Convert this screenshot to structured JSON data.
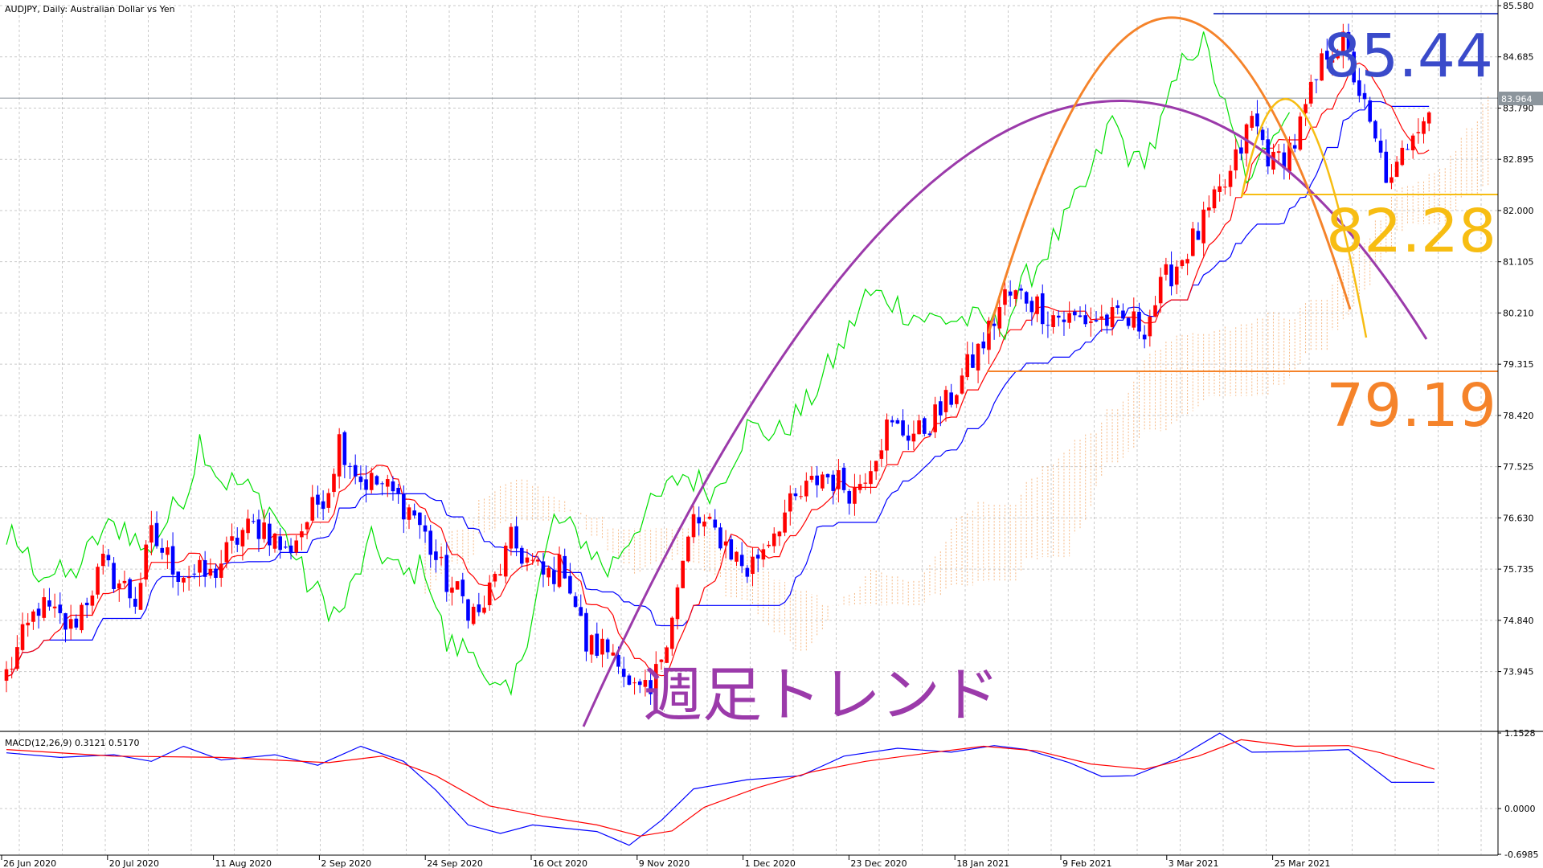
{
  "header": {
    "symbol_label": "AUDJPY, Daily:  Australian Dollar vs Yen"
  },
  "macd_header": {
    "label": "MACD(12,26,9) 0.3121 0.5170"
  },
  "current_price": "83.964",
  "annotation_text": "週足トレンド",
  "colors": {
    "bull_candle": "#ff0000",
    "bear_candle": "#0000ff",
    "tenkan": "#ff0000",
    "kijun": "#0000ff",
    "chikou": "#00e000",
    "cloud": "#f4a460",
    "purple": "#9b3aaa",
    "orange": "#f5832a",
    "gold": "#f7bd12",
    "level_blue": "#3a4aca",
    "macd_main": "#0000ff",
    "macd_signal": "#ff0000"
  },
  "chart_data": [
    {
      "type": "candlestick",
      "title": "AUDJPY, Daily:  Australian Dollar vs Yen",
      "ylim": [
        72.9,
        85.58
      ],
      "y_ticks": [
        "85.580",
        "84.685",
        "83.790",
        "82.895",
        "82.000",
        "81.105",
        "80.210",
        "79.315",
        "78.420",
        "77.525",
        "76.630",
        "75.735",
        "74.840",
        "73.945"
      ],
      "x_ticks": [
        "26 Jun 2020",
        "20 Jul 2020",
        "11 Aug 2020",
        "2 Sep 2020",
        "24 Sep 2020",
        "16 Oct 2020",
        "9 Nov 2020",
        "1 Dec 2020",
        "23 Dec 2020",
        "18 Jan 2021",
        "9 Feb 2021",
        "3 Mar 2021",
        "25 Mar 2021"
      ],
      "close_path": [
        [
          0,
          73.9
        ],
        [
          6,
          75.1
        ],
        [
          12,
          74.7
        ],
        [
          18,
          75.8
        ],
        [
          24,
          75.2
        ],
        [
          27,
          76.3
        ],
        [
          32,
          75.7
        ],
        [
          38,
          75.6
        ],
        [
          44,
          76.4
        ],
        [
          48,
          76.5
        ],
        [
          52,
          76.0
        ],
        [
          60,
          77.2
        ],
        [
          62,
          78.0
        ],
        [
          66,
          77.3
        ],
        [
          70,
          77.2
        ],
        [
          76,
          76.7
        ],
        [
          82,
          75.5
        ],
        [
          88,
          74.9
        ],
        [
          94,
          76.2
        ],
        [
          100,
          75.6
        ],
        [
          104,
          75.8
        ],
        [
          108,
          74.4
        ],
        [
          114,
          74.3
        ],
        [
          116,
          73.6
        ],
        [
          120,
          73.5
        ],
        [
          125,
          75.4
        ],
        [
          128,
          76.6
        ],
        [
          133,
          76.3
        ],
        [
          138,
          75.7
        ],
        [
          144,
          76.6
        ],
        [
          152,
          77.4
        ],
        [
          158,
          77.1
        ],
        [
          164,
          78.2
        ],
        [
          170,
          78.1
        ],
        [
          175,
          78.6
        ],
        [
          182,
          79.7
        ],
        [
          186,
          80.5
        ],
        [
          190,
          80.5
        ],
        [
          194,
          80.2
        ],
        [
          198,
          80.1
        ],
        [
          204,
          80.1
        ],
        [
          212,
          80.0
        ],
        [
          216,
          80.8
        ],
        [
          222,
          81.6
        ],
        [
          228,
          82.6
        ],
        [
          232,
          83.6
        ],
        [
          236,
          82.8
        ],
        [
          240,
          83.2
        ],
        [
          246,
          84.8
        ],
        [
          249,
          84.9
        ],
        [
          252,
          84.1
        ],
        [
          254,
          83.4
        ],
        [
          256,
          82.9
        ],
        [
          258,
          82.4
        ],
        [
          262,
          83.5
        ],
        [
          265,
          83.8
        ]
      ],
      "levels": [
        {
          "label": "85.44",
          "value": 85.44
        },
        {
          "label": "82.28",
          "value": 82.28
        },
        {
          "label": "79.19",
          "value": 79.19
        }
      ],
      "annotation": "週足トレンド",
      "current_price": 83.964
    },
    {
      "type": "line",
      "title": "MACD(12,26,9) 0.3121 0.5170",
      "ylim": [
        -0.6985,
        1.1528
      ],
      "y_ticks": [
        "1.1528",
        "0.0000",
        "-0.6985"
      ],
      "main_value": 0.3121,
      "signal_value": 0.517,
      "series": [
        {
          "name": "main",
          "values": [
            [
              0,
              0.85
            ],
            [
              10,
              0.78
            ],
            [
              20,
              0.82
            ],
            [
              27,
              0.72
            ],
            [
              33,
              0.95
            ],
            [
              40,
              0.74
            ],
            [
              50,
              0.82
            ],
            [
              58,
              0.66
            ],
            [
              66,
              0.95
            ],
            [
              74,
              0.72
            ],
            [
              80,
              0.28
            ],
            [
              86,
              -0.25
            ],
            [
              92,
              -0.38
            ],
            [
              98,
              -0.25
            ],
            [
              104,
              -0.3
            ],
            [
              110,
              -0.35
            ],
            [
              116,
              -0.56
            ],
            [
              122,
              -0.18
            ],
            [
              128,
              0.3
            ],
            [
              138,
              0.44
            ],
            [
              148,
              0.5
            ],
            [
              156,
              0.8
            ],
            [
              166,
              0.92
            ],
            [
              176,
              0.86
            ],
            [
              184,
              0.96
            ],
            [
              190,
              0.9
            ],
            [
              198,
              0.7
            ],
            [
              204,
              0.49
            ],
            [
              210,
              0.5
            ],
            [
              218,
              0.76
            ],
            [
              226,
              1.15
            ],
            [
              232,
              0.86
            ],
            [
              240,
              0.87
            ],
            [
              250,
              0.9
            ],
            [
              258,
              0.4
            ],
            [
              266,
              0.4
            ]
          ]
        },
        {
          "name": "signal",
          "values": [
            [
              0,
              0.9
            ],
            [
              20,
              0.8
            ],
            [
              40,
              0.78
            ],
            [
              60,
              0.7
            ],
            [
              70,
              0.8
            ],
            [
              80,
              0.5
            ],
            [
              90,
              0.04
            ],
            [
              100,
              -0.12
            ],
            [
              110,
              -0.25
            ],
            [
              118,
              -0.42
            ],
            [
              124,
              -0.34
            ],
            [
              130,
              0.02
            ],
            [
              140,
              0.32
            ],
            [
              150,
              0.56
            ],
            [
              160,
              0.72
            ],
            [
              172,
              0.85
            ],
            [
              182,
              0.95
            ],
            [
              192,
              0.88
            ],
            [
              202,
              0.68
            ],
            [
              212,
              0.6
            ],
            [
              222,
              0.8
            ],
            [
              230,
              1.05
            ],
            [
              240,
              0.95
            ],
            [
              250,
              0.96
            ],
            [
              256,
              0.85
            ],
            [
              266,
              0.6
            ]
          ]
        }
      ]
    }
  ]
}
